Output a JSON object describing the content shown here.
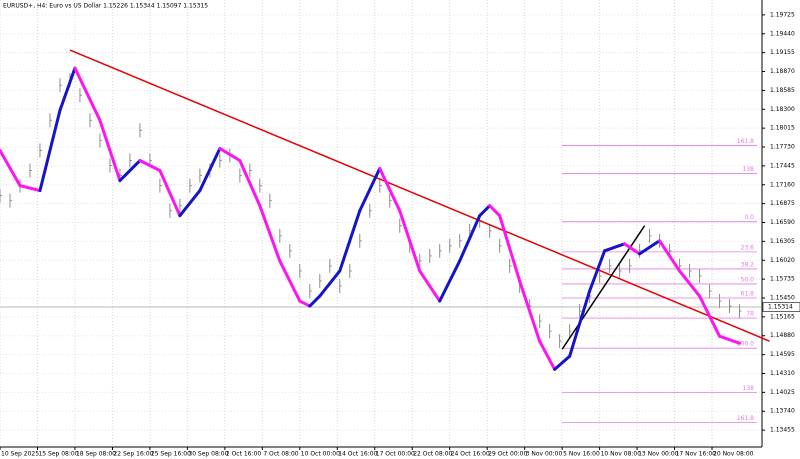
{
  "chart_data": {
    "type": "price",
    "title": "EURUSD+, H4:  Euro vs US Dollar  1.15226 1.15344 1.15097 1.15315",
    "x": [
      0,
      4,
      8,
      12,
      16,
      20,
      24,
      28,
      32,
      36,
      40,
      44,
      48,
      52,
      56,
      60,
      64,
      68,
      72,
      76,
      80,
      84,
      88,
      92,
      96,
      100,
      104,
      108,
      112,
      116,
      120,
      124,
      128,
      132,
      136,
      140,
      144,
      148,
      152,
      156,
      160,
      164,
      168,
      172,
      176,
      180,
      184,
      188,
      192,
      196,
      200,
      204,
      208,
      212,
      216,
      220,
      224,
      228,
      232,
      236,
      240,
      244,
      248,
      252,
      256,
      260,
      264,
      268,
      272,
      276,
      280,
      284,
      288,
      292,
      296
    ],
    "values": [
      1.16996,
      1.1692,
      1.17147,
      1.17375,
      1.17678,
      1.18133,
      1.18663,
      1.18739,
      1.18512,
      1.18133,
      1.1783,
      1.17451,
      1.17299,
      1.17526,
      1.17981,
      1.17526,
      1.17147,
      1.16768,
      1.16844,
      1.17147,
      1.17299,
      1.17375,
      1.17526,
      1.17602,
      1.17299,
      1.17375,
      1.17147,
      1.1692,
      1.16389,
      1.16162,
      1.15859,
      1.15556,
      1.15707,
      1.15935,
      1.15631,
      1.15859,
      1.16314,
      1.16768,
      1.17147,
      1.1692,
      1.16541,
      1.16238,
      1.1601,
      1.16086,
      1.16162,
      1.16238,
      1.16314,
      1.16465,
      1.16617,
      1.16465,
      1.16238,
      1.15935,
      1.15631,
      1.15328,
      1.15101,
      1.14949,
      1.14798,
      1.14949,
      1.15252,
      1.1548,
      1.15783,
      1.15935,
      1.15859,
      1.15935,
      1.16162,
      1.16389,
      1.16314,
      1.16162,
      1.15935,
      1.15859,
      1.15783,
      1.15556,
      1.15404,
      1.15328,
      1.15252
    ],
    "color": "#8c8c8c",
    "indicator": {
      "x": [
        0,
        8,
        16,
        24,
        30,
        40,
        48,
        56,
        64,
        72,
        80,
        88,
        96,
        104,
        112,
        120,
        124,
        128,
        136,
        144,
        152,
        160,
        168,
        176,
        184,
        192,
        196,
        200,
        208,
        216,
        222,
        228,
        236,
        242,
        250,
        256,
        264,
        272,
        280,
        288,
        296
      ],
      "values": [
        1.17678,
        1.17147,
        1.17072,
        1.18284,
        1.18921,
        1.18133,
        1.17223,
        1.17526,
        1.17375,
        1.16693,
        1.17072,
        1.17708,
        1.17526,
        1.16844,
        1.1601,
        1.15404,
        1.15328,
        1.1548,
        1.15859,
        1.16768,
        1.17405,
        1.16768,
        1.15859,
        1.15404,
        1.1601,
        1.16693,
        1.16844,
        1.16693,
        1.15707,
        1.14798,
        1.14373,
        1.1457,
        1.15556,
        1.16162,
        1.16268,
        1.16117,
        1.16314,
        1.15859,
        1.1548,
        1.14873,
        1.14767
      ],
      "up_color": "#1414c8",
      "down_color": "#ff14f0"
    },
    "trendlines": [
      {
        "x": [
          28,
          308
        ],
        "values": [
          1.19194,
          1.14798
        ],
        "color": "#e80000"
      },
      {
        "x": [
          225,
          258
        ],
        "values": [
          1.14676,
          1.16541
        ],
        "color": "#000000"
      }
    ],
    "fibo": {
      "x": [
        225,
        303
      ],
      "color": "#e37ce3",
      "levels": [
        {
          "value": 1.17754,
          "label": "161.8"
        },
        {
          "value": 1.17329,
          "label": "138"
        },
        {
          "value": 1.16602,
          "label": "0.0"
        },
        {
          "value": 1.16147,
          "label": "23.6"
        },
        {
          "value": 1.15889,
          "label": "38.2"
        },
        {
          "value": 1.15662,
          "label": "50.0"
        },
        {
          "value": 1.1545,
          "label": "61.8"
        },
        {
          "value": 1.15146,
          "label": "78"
        },
        {
          "value": 1.14692,
          "label": "100.0"
        },
        {
          "value": 1.14025,
          "label": "138"
        },
        {
          "value": 1.1357,
          "label": "161.8"
        }
      ]
    },
    "last_price": {
      "value": 1.15314,
      "label": "1.15314"
    },
    "xlim": [
      0,
      305
    ],
    "ylim": [
      1.132,
      1.1995
    ],
    "xticks": [
      {
        "value": 0,
        "label": "10 Sep 2025"
      },
      {
        "value": 15,
        "label": "15 Sep 08:00"
      },
      {
        "value": 30,
        "label": "18 Sep 08:00"
      },
      {
        "value": 45,
        "label": "22 Sep 16:00"
      },
      {
        "value": 60,
        "label": "25 Sep 16:00"
      },
      {
        "value": 75,
        "label": "30 Sep 08:00"
      },
      {
        "value": 90,
        "label": "2 Oct 16:00"
      },
      {
        "value": 105,
        "label": "7 Oct 08:00"
      },
      {
        "value": 120,
        "label": "10 Oct 00:00"
      },
      {
        "value": 135,
        "label": "14 Oct 16:00"
      },
      {
        "value": 150,
        "label": "17 Oct 00:00"
      },
      {
        "value": 165,
        "label": "22 Oct 08:00"
      },
      {
        "value": 180,
        "label": "24 Oct 16:00"
      },
      {
        "value": 195,
        "label": "29 Oct 00:00"
      },
      {
        "value": 210,
        "label": "3 Nov 00:00"
      },
      {
        "value": 225,
        "label": "5 Nov 16:00"
      },
      {
        "value": 240,
        "label": "10 Nov 08:00"
      },
      {
        "value": 255,
        "label": "13 Nov 00:00"
      },
      {
        "value": 270,
        "label": "17 Nov 16:00"
      },
      {
        "value": 285,
        "label": "20 Nov 08:00"
      }
    ],
    "yticks": [
      {
        "value": 1.19725,
        "label": "1.19725"
      },
      {
        "value": 1.1944,
        "label": "1.19440"
      },
      {
        "value": 1.19155,
        "label": "1.19155"
      },
      {
        "value": 1.1887,
        "label": "1.18870"
      },
      {
        "value": 1.18585,
        "label": "1.18585"
      },
      {
        "value": 1.183,
        "label": "1.18300"
      },
      {
        "value": 1.18015,
        "label": "1.18015"
      },
      {
        "value": 1.1773,
        "label": "1.17730"
      },
      {
        "value": 1.17445,
        "label": "1.17445"
      },
      {
        "value": 1.1716,
        "label": "1.17160"
      },
      {
        "value": 1.16875,
        "label": "1.16875"
      },
      {
        "value": 1.1659,
        "label": "1.16590"
      },
      {
        "value": 1.16305,
        "label": "1.16305"
      },
      {
        "value": 1.1602,
        "label": "1.16020"
      },
      {
        "value": 1.15735,
        "label": "1.15735"
      },
      {
        "value": 1.1545,
        "label": "1.15450"
      },
      {
        "value": 1.15165,
        "label": "1.15165"
      },
      {
        "value": 1.1488,
        "label": "1.14880"
      },
      {
        "value": 1.14595,
        "label": "1.14595"
      },
      {
        "value": 1.1431,
        "label": "1.14310"
      },
      {
        "value": 1.14025,
        "label": "1.14025"
      },
      {
        "value": 1.1374,
        "label": "1.13740"
      },
      {
        "value": 1.13455,
        "label": "1.13455"
      }
    ],
    "grid": true
  }
}
